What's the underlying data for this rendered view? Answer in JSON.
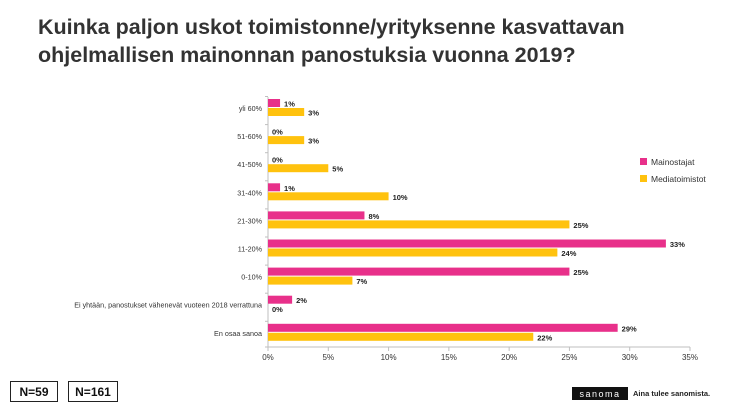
{
  "title_line1": "Kuinka paljon uskot toimistonne/yrityksenne kasvattavan",
  "title_line2": "ohjelmallisen mainonnan panostuksia vuonna 2019?",
  "chart_data": {
    "type": "bar",
    "orientation": "horizontal",
    "categories": [
      "yli 60%",
      "51-60%",
      "41-50%",
      "31-40%",
      "21-30%",
      "11-20%",
      "0-10%",
      "Ei yhtään, panostukset vähenevät vuoteen 2018 verrattuna",
      "En osaa sanoa"
    ],
    "series": [
      {
        "name": "Mainostajat",
        "color": "#E8308A",
        "values": [
          1,
          0,
          0,
          1,
          8,
          33,
          25,
          2,
          29
        ]
      },
      {
        "name": "Mediatoimistot",
        "color": "#FFC20E",
        "values": [
          3,
          3,
          5,
          10,
          25,
          24,
          7,
          0,
          22
        ]
      }
    ],
    "value_suffix": "%",
    "xlim": [
      0,
      35
    ],
    "xticks": [
      "0%",
      "5%",
      "10%",
      "15%",
      "20%",
      "25%",
      "30%",
      "35%"
    ],
    "grid": false,
    "legend_position": "right"
  },
  "footer": {
    "n_left": "N=59",
    "n_right": "N=161",
    "brand": "sanoma",
    "tagline": "Aina tulee sanomista."
  }
}
